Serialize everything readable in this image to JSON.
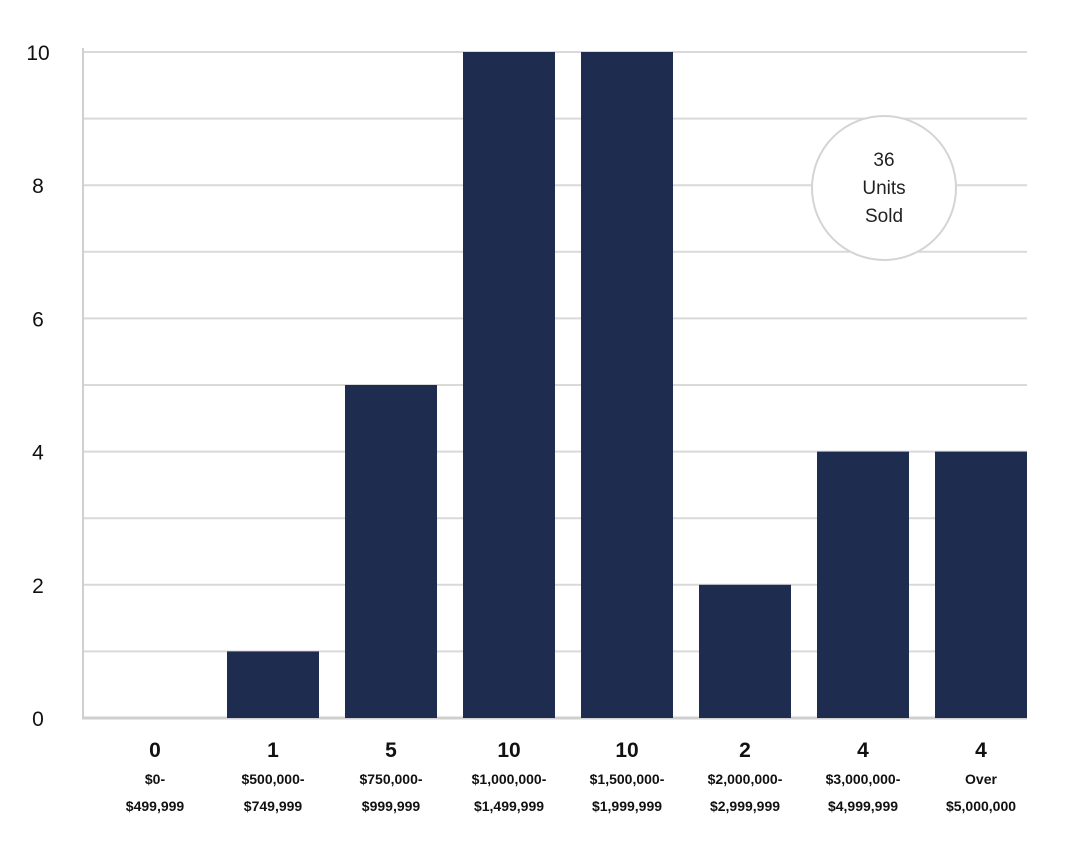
{
  "chart_data": {
    "type": "bar",
    "categories": [
      [
        "$0-",
        "$499,999"
      ],
      [
        "$500,000-",
        "$749,999"
      ],
      [
        "$750,000-",
        "$999,999"
      ],
      [
        "$1,000,000-",
        "$1,499,999"
      ],
      [
        "$1,500,000-",
        "$1,999,999"
      ],
      [
        "$2,000,000-",
        "$2,999,999"
      ],
      [
        "$3,000,000-",
        "$4,999,999"
      ],
      [
        "Over",
        "$5,000,000"
      ]
    ],
    "values": [
      0,
      1,
      5,
      10,
      10,
      2,
      4,
      4
    ],
    "value_labels": [
      "0",
      "1",
      "5",
      "10",
      "10",
      "2",
      "4",
      "4"
    ],
    "yticks": [
      "0",
      "2",
      "4",
      "6",
      "8",
      "10"
    ],
    "ylim": [
      0,
      10
    ],
    "grid": true,
    "bar_color": "#1e2c4f",
    "grid_color": "#d9d9d9"
  },
  "badge": {
    "lines": [
      "36",
      "Units",
      "Sold"
    ]
  }
}
